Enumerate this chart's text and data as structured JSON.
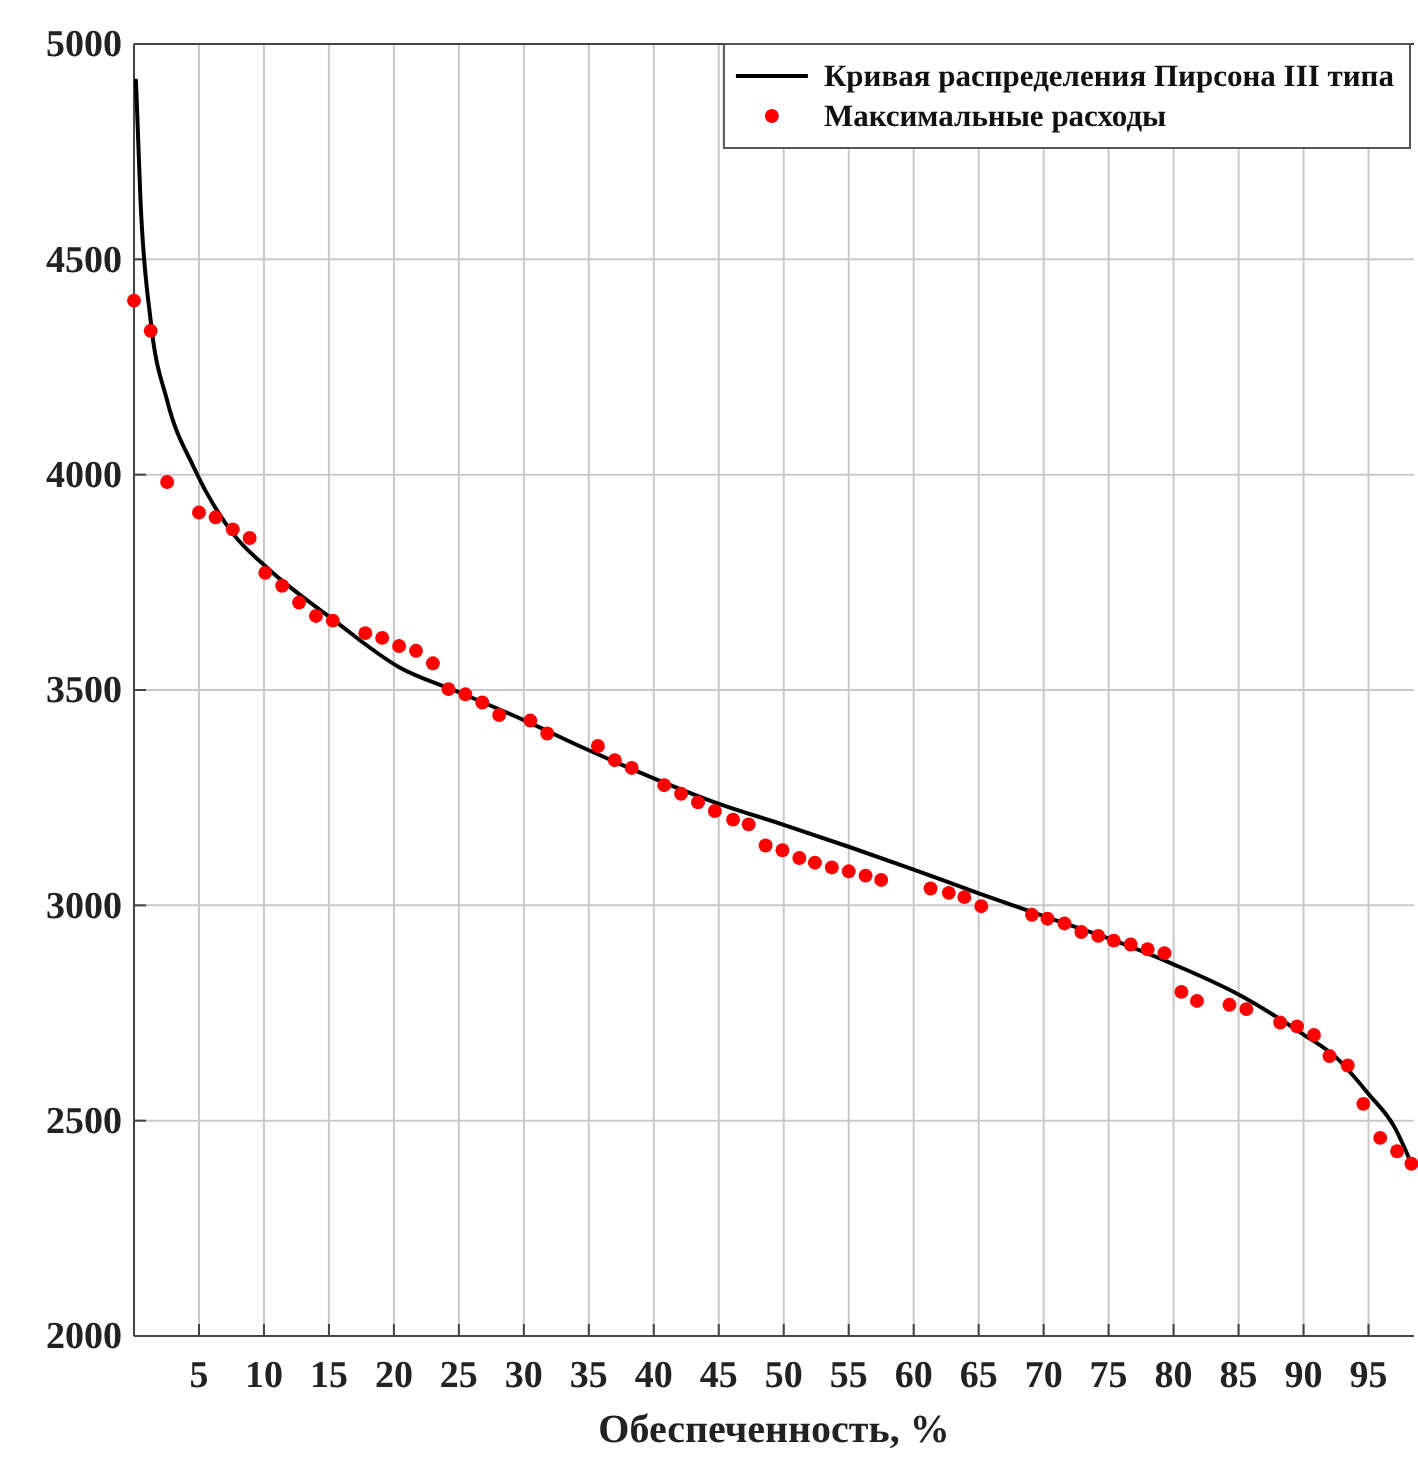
{
  "chart_data": {
    "type": "scatter",
    "xlabel": "Обеспеченность, %",
    "xlim": [
      0,
      98.5
    ],
    "xticks": [
      5,
      10,
      15,
      20,
      25,
      30,
      35,
      40,
      45,
      50,
      55,
      60,
      65,
      70,
      75,
      80,
      85,
      90,
      95
    ],
    "ylim": [
      2000,
      5000
    ],
    "yticks": [
      2000,
      2500,
      3000,
      3500,
      4000,
      4500,
      5000
    ],
    "grid": true,
    "legend": "top right",
    "series": [
      {
        "name": "Кривая распределения Пирсона III типа",
        "type": "line",
        "color": "#000000",
        "marker": "none",
        "line_style": "solid",
        "x": [
          0.15,
          0.5,
          1.28,
          2.55,
          4.6,
          7.65,
          10.2,
          15.3,
          20.4,
          25,
          30,
          35,
          40,
          44.8,
          50,
          55,
          60,
          65,
          70,
          75,
          80,
          85,
          90,
          92.5,
          95,
          97,
          98.3
        ],
        "values": [
          4915,
          4636,
          4358,
          4172,
          4017,
          3862,
          3785,
          3664,
          3553,
          3495,
          3430,
          3360,
          3295,
          3238,
          3187,
          3136,
          3083,
          3028,
          2975,
          2923,
          2863,
          2793,
          2700,
          2647,
          2562,
          2485,
          2400
        ]
      },
      {
        "name": "Максимальные расходы",
        "color": "#ff0000",
        "marker": "circle",
        "x": [
          0,
          1.28,
          2.55,
          5.0,
          6.28,
          7.6,
          8.9,
          10.1,
          11.4,
          12.7,
          14.0,
          15.3,
          17.8,
          19.1,
          20.4,
          21.7,
          23.0,
          24.2,
          25.5,
          26.8,
          28.1,
          30.5,
          31.8,
          35.7,
          37.0,
          38.3,
          40.8,
          42.1,
          43.4,
          44.7,
          46.1,
          47.3,
          48.6,
          49.9,
          51.2,
          52.4,
          53.7,
          55.0,
          56.3,
          57.5,
          61.3,
          62.7,
          63.9,
          65.2,
          69.1,
          70.3,
          71.6,
          72.9,
          74.2,
          75.4,
          76.7,
          78.0,
          79.3,
          80.6,
          81.8,
          84.3,
          85.6,
          88.2,
          89.5,
          90.8,
          92.0,
          93.4,
          94.6,
          95.9,
          97.2,
          98.3
        ],
        "values": [
          4404,
          4334,
          3983,
          3912,
          3901,
          3873,
          3853,
          3772,
          3742,
          3703,
          3672,
          3661,
          3632,
          3621,
          3602,
          3591,
          3562,
          3502,
          3490,
          3471,
          3442,
          3429,
          3399,
          3370,
          3337,
          3319,
          3279,
          3259,
          3239,
          3219,
          3199,
          3188,
          3139,
          3128,
          3110,
          3099,
          3088,
          3079,
          3069,
          3059,
          3039,
          3029,
          3019,
          2998,
          2978,
          2969,
          2958,
          2938,
          2929,
          2918,
          2909,
          2898,
          2889,
          2799,
          2778,
          2769,
          2759,
          2728,
          2719,
          2699,
          2650,
          2628,
          2539,
          2460,
          2429,
          2400
        ]
      }
    ]
  }
}
